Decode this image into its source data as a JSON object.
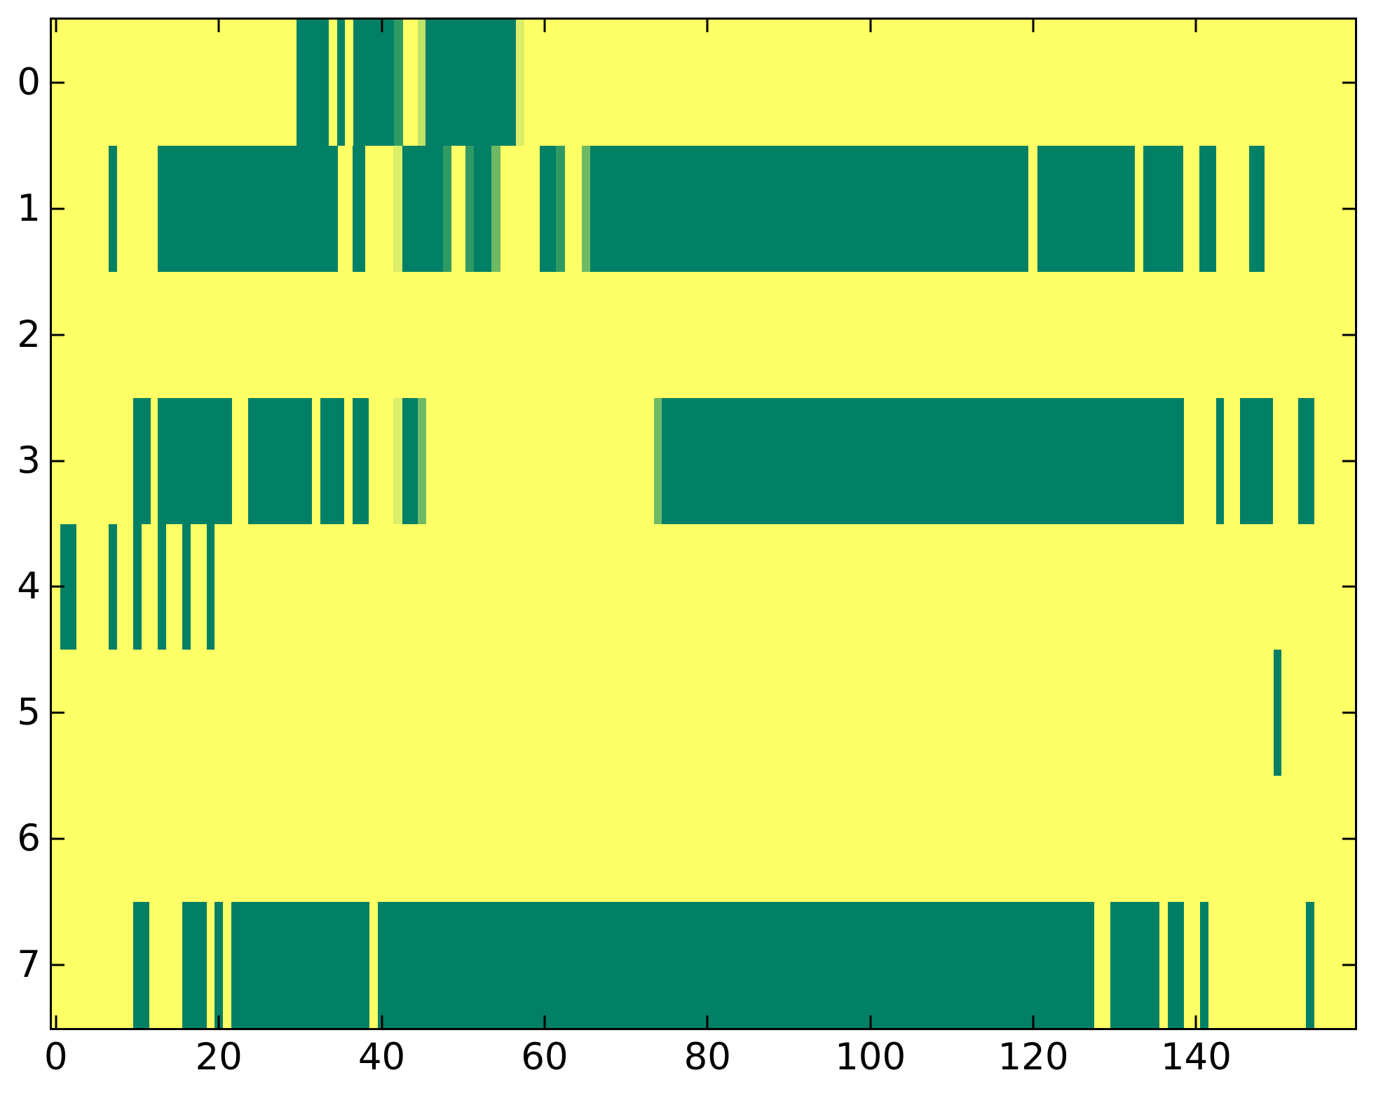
{
  "figure": {
    "background": "#ffffff",
    "axes": {
      "border_color": "#000000",
      "tick_color": "#000000",
      "x_tick_labels": [
        "0",
        "20",
        "40",
        "60",
        "80",
        "100",
        "120",
        "140"
      ],
      "y_tick_labels": [
        "0",
        "1",
        "2",
        "3",
        "4",
        "5",
        "6",
        "7"
      ]
    }
  },
  "palette": {
    "background": "#FFFF66",
    "teal": "#028066",
    "green_dark": "#2F9B63",
    "green_mid": "#6EB964",
    "green_light": "#C0E267",
    "green_pale": "#DBEE6A"
  },
  "chart_data": {
    "type": "heatmap",
    "title": "",
    "xlabel": "",
    "ylabel": "",
    "x_range": [
      -0.5,
      159.5
    ],
    "y_range": [
      -0.5,
      7.5
    ],
    "x_ticks": [
      0,
      20,
      40,
      60,
      80,
      100,
      120,
      140
    ],
    "y_ticks": [
      0,
      1,
      2,
      3,
      4,
      5,
      6,
      7
    ],
    "grid": false,
    "legend": false,
    "background_value_color": "background",
    "rows": [
      {
        "label": 0,
        "segments": [
          [
            29.5,
            33.5,
            "teal"
          ],
          [
            34.5,
            35.5,
            "teal"
          ],
          [
            36.5,
            41.5,
            "teal"
          ],
          [
            41.5,
            42.6,
            "green_dark"
          ],
          [
            44.4,
            45.4,
            "green_light"
          ],
          [
            45.4,
            56.5,
            "teal"
          ],
          [
            56.5,
            57.5,
            "green_pale"
          ]
        ]
      },
      {
        "label": 1,
        "segments": [
          [
            6.5,
            7.5,
            "teal"
          ],
          [
            12.5,
            34.6,
            "teal"
          ],
          [
            36.4,
            38.0,
            "teal"
          ],
          [
            41.4,
            42.5,
            "green_pale"
          ],
          [
            42.5,
            47.5,
            "teal"
          ],
          [
            47.5,
            48.6,
            "green_dark"
          ],
          [
            50.3,
            51.3,
            "green_dark"
          ],
          [
            51.3,
            53.5,
            "teal"
          ],
          [
            53.5,
            54.6,
            "green_mid"
          ],
          [
            59.4,
            61.4,
            "teal"
          ],
          [
            61.4,
            62.5,
            "green_dark"
          ],
          [
            64.6,
            65.6,
            "green_mid"
          ],
          [
            65.6,
            119.4,
            "teal"
          ],
          [
            120.5,
            132.5,
            "teal"
          ],
          [
            133.5,
            138.4,
            "teal"
          ],
          [
            140.4,
            142.5,
            "teal"
          ],
          [
            146.5,
            148.4,
            "teal"
          ]
        ]
      },
      {
        "label": 2,
        "segments": []
      },
      {
        "label": 3,
        "segments": [
          [
            9.5,
            11.6,
            "teal"
          ],
          [
            12.5,
            21.6,
            "teal"
          ],
          [
            23.6,
            31.4,
            "teal"
          ],
          [
            32.5,
            35.4,
            "teal"
          ],
          [
            36.4,
            38.4,
            "teal"
          ],
          [
            41.4,
            42.5,
            "green_pale"
          ],
          [
            42.5,
            44.4,
            "teal"
          ],
          [
            44.4,
            45.5,
            "green_mid"
          ],
          [
            73.4,
            74.4,
            "green_mid"
          ],
          [
            74.4,
            138.5,
            "teal"
          ],
          [
            142.5,
            143.4,
            "teal"
          ],
          [
            145.4,
            149.4,
            "teal"
          ],
          [
            152.5,
            154.5,
            "teal"
          ]
        ]
      },
      {
        "label": 4,
        "segments": [
          [
            0.5,
            2.5,
            "teal"
          ],
          [
            6.5,
            7.5,
            "teal"
          ],
          [
            9.5,
            10.5,
            "teal"
          ],
          [
            12.5,
            13.5,
            "teal"
          ],
          [
            15.5,
            16.5,
            "teal"
          ],
          [
            18.5,
            19.5,
            "teal"
          ]
        ]
      },
      {
        "label": 5,
        "segments": [
          [
            149.5,
            150.5,
            "teal"
          ]
        ]
      },
      {
        "label": 6,
        "segments": []
      },
      {
        "label": 7,
        "segments": [
          [
            9.5,
            11.5,
            "teal"
          ],
          [
            15.5,
            18.5,
            "teal"
          ],
          [
            19.5,
            20.5,
            "teal"
          ],
          [
            21.5,
            38.5,
            "teal"
          ],
          [
            39.5,
            127.5,
            "teal"
          ],
          [
            129.5,
            135.5,
            "teal"
          ],
          [
            136.5,
            138.5,
            "teal"
          ],
          [
            140.5,
            141.5,
            "teal"
          ],
          [
            153.5,
            154.5,
            "teal"
          ]
        ]
      }
    ]
  }
}
